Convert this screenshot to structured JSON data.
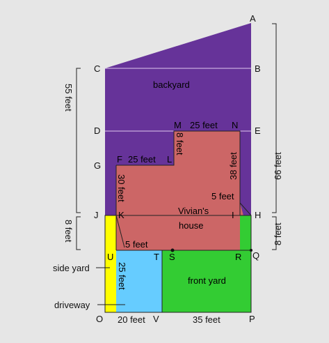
{
  "colors": {
    "background": "#e6e6e6",
    "backyard": "#663399",
    "house": "#cc6666",
    "front_yard": "#33cc33",
    "driveway": "#66ccff",
    "side_yard": "#ffff00",
    "divider": "#e0c8f0",
    "outline": "#222222"
  },
  "points": {
    "A": "A",
    "B": "B",
    "C": "C",
    "D": "D",
    "E": "E",
    "F": "F",
    "G": "G",
    "H": "H",
    "I": "I",
    "J": "J",
    "K": "K",
    "L": "L",
    "M": "M",
    "N": "N",
    "O": "O",
    "P": "P",
    "Q": "Q",
    "R": "R",
    "S": "S",
    "T": "T",
    "U": "U",
    "V": "V"
  },
  "regions": {
    "backyard": "backyard",
    "house_line1": "Vivian's",
    "house_line2": "house",
    "front_yard": "front yard"
  },
  "measures": {
    "mn": "25 feet",
    "ml": "8 feet",
    "fl": "25 feet",
    "fk": "30 feet",
    "ni": "38 feet",
    "ih": "5 feet",
    "ks": "5 feet",
    "tv": "25 feet",
    "ov": "20 feet",
    "vp": "35 feet"
  },
  "dimensions": {
    "left_top": "55 feet",
    "left_bottom": "8 feet",
    "right_top": "66 feet",
    "right_bottom": "8 feet"
  },
  "callouts": {
    "side_yard": "side yard",
    "driveway": "driveway"
  }
}
